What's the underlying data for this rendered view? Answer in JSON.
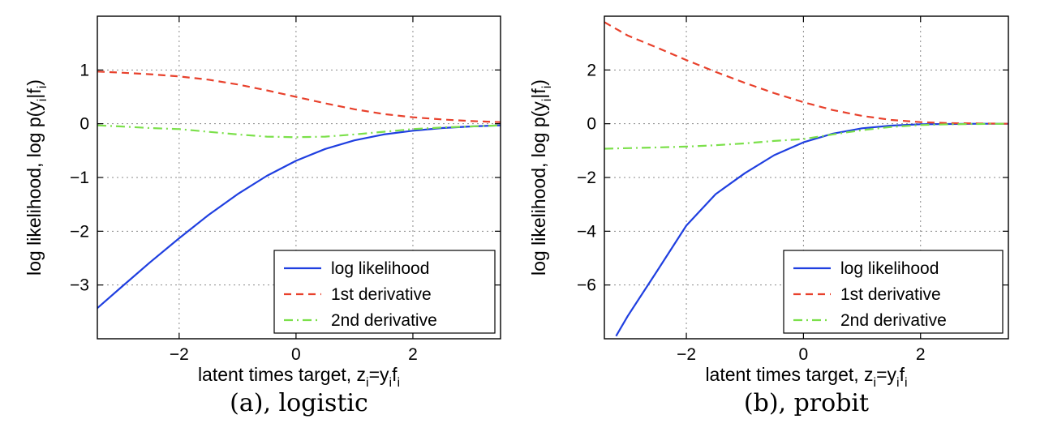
{
  "chart_data": [
    {
      "type": "line",
      "caption": "(a), logistic",
      "xlabel": "latent times target, z",
      "xlabel_sub_parts": [
        "i",
        "=y",
        "i",
        "f",
        "i"
      ],
      "ylabel": "log likelihood, log p(y",
      "ylabel_parts": [
        "i",
        "|f",
        "i",
        ")"
      ],
      "xlim": [
        -3.4,
        3.5
      ],
      "ylim": [
        -4.0,
        2.0
      ],
      "xticks": [
        -2,
        0,
        2
      ],
      "xtick_labels": [
        "−2",
        "0",
        "2"
      ],
      "yticks": [
        -3,
        -2,
        -1,
        0,
        1
      ],
      "ytick_labels": [
        "−3",
        "−2",
        "−1",
        "0",
        "1"
      ],
      "grid": true,
      "legend_position": "bottom-right",
      "series": [
        {
          "name": "log likelihood",
          "color": "#1f3fe0",
          "style": "solid",
          "x": [
            -3.4,
            -3.0,
            -2.5,
            -2.0,
            -1.5,
            -1.0,
            -0.5,
            0.0,
            0.5,
            1.0,
            1.5,
            2.0,
            2.5,
            3.0,
            3.5
          ],
          "y": [
            -3.43,
            -3.05,
            -2.58,
            -2.13,
            -1.7,
            -1.31,
            -0.97,
            -0.69,
            -0.47,
            -0.31,
            -0.2,
            -0.13,
            -0.08,
            -0.05,
            -0.03
          ]
        },
        {
          "name": "1st derivative",
          "color": "#e8412c",
          "style": "dashed",
          "x": [
            -3.4,
            -3.0,
            -2.5,
            -2.0,
            -1.5,
            -1.0,
            -0.5,
            0.0,
            0.5,
            1.0,
            1.5,
            2.0,
            2.5,
            3.0,
            3.5
          ],
          "y": [
            0.97,
            0.95,
            0.92,
            0.88,
            0.82,
            0.73,
            0.62,
            0.5,
            0.38,
            0.27,
            0.18,
            0.12,
            0.08,
            0.05,
            0.03
          ]
        },
        {
          "name": "2nd derivative",
          "color": "#7be04a",
          "style": "dashdot",
          "x": [
            -3.4,
            -3.0,
            -2.5,
            -2.0,
            -1.5,
            -1.0,
            -0.5,
            0.0,
            0.5,
            1.0,
            1.5,
            2.0,
            2.5,
            3.0,
            3.5
          ],
          "y": [
            -0.03,
            -0.05,
            -0.08,
            -0.1,
            -0.15,
            -0.2,
            -0.24,
            -0.25,
            -0.24,
            -0.2,
            -0.15,
            -0.1,
            -0.07,
            -0.05,
            -0.03
          ]
        }
      ]
    },
    {
      "type": "line",
      "caption": "(b), probit",
      "xlabel": "latent times target, z",
      "xlabel_sub_parts": [
        "i",
        "=y",
        "i",
        "f",
        "i"
      ],
      "ylabel": "log likelihood, log p(y",
      "ylabel_parts": [
        "i",
        "|f",
        "i",
        ")"
      ],
      "xlim": [
        -3.4,
        3.5
      ],
      "ylim": [
        -8.0,
        4.0
      ],
      "xticks": [
        -2,
        0,
        2
      ],
      "xtick_labels": [
        "−2",
        "0",
        "2"
      ],
      "yticks": [
        -6,
        -4,
        -2,
        0,
        2
      ],
      "ytick_labels": [
        "−6",
        "−4",
        "−2",
        "0",
        "2"
      ],
      "grid": true,
      "legend_position": "bottom-right",
      "series": [
        {
          "name": "log likelihood",
          "color": "#1f3fe0",
          "style": "solid",
          "x": [
            -3.2,
            -3.0,
            -2.5,
            -2.0,
            -1.5,
            -1.0,
            -0.5,
            0.0,
            0.5,
            1.0,
            1.5,
            2.0,
            2.5,
            3.0,
            3.5
          ],
          "y": [
            -7.9,
            -7.15,
            -5.48,
            -3.79,
            -2.62,
            -1.84,
            -1.17,
            -0.69,
            -0.37,
            -0.17,
            -0.07,
            -0.02,
            -0.01,
            0.0,
            0.0
          ]
        },
        {
          "name": "1st derivative",
          "color": "#e8412c",
          "style": "dashed",
          "x": [
            -3.4,
            -3.0,
            -2.5,
            -2.0,
            -1.5,
            -1.0,
            -0.5,
            0.0,
            0.5,
            1.0,
            1.5,
            2.0,
            2.5,
            3.0,
            3.5
          ],
          "y": [
            3.78,
            3.28,
            2.83,
            2.37,
            1.93,
            1.52,
            1.14,
            0.8,
            0.51,
            0.29,
            0.14,
            0.06,
            0.02,
            0.01,
            0.0
          ]
        },
        {
          "name": "2nd derivative",
          "color": "#7be04a",
          "style": "dashdot",
          "x": [
            -3.4,
            -3.0,
            -2.5,
            -2.0,
            -1.5,
            -1.0,
            -0.5,
            0.0,
            0.5,
            1.0,
            1.5,
            2.0,
            2.5,
            3.0,
            3.5
          ],
          "y": [
            -0.93,
            -0.91,
            -0.88,
            -0.85,
            -0.8,
            -0.73,
            -0.64,
            -0.57,
            -0.4,
            -0.24,
            -0.12,
            -0.05,
            -0.02,
            -0.01,
            0.0
          ]
        }
      ]
    }
  ]
}
